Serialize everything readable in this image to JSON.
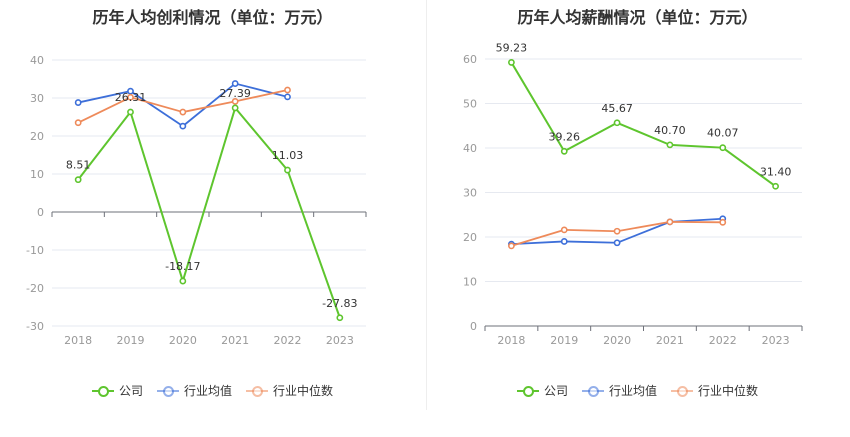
{
  "colors": {
    "company": "#5ec52e",
    "industry_avg": "#3d6fd9",
    "industry_median": "#ee8a5a"
  },
  "legend": {
    "company": "公司",
    "industry_avg": "行业均值",
    "industry_median": "行业中位数"
  },
  "chart_data": [
    {
      "type": "line",
      "title": "历年人均创利情况（单位：万元）",
      "categories": [
        "2018",
        "2019",
        "2020",
        "2021",
        "2022",
        "2023"
      ],
      "ylim": [
        -30,
        40
      ],
      "yticks": [
        -30,
        -20,
        -10,
        0,
        10,
        20,
        30,
        40
      ],
      "grid": true,
      "legend_position": "bottom",
      "series": [
        {
          "name": "公司",
          "color_key": "company",
          "values": [
            8.51,
            26.31,
            -18.17,
            27.39,
            11.03,
            -27.83
          ],
          "labels": [
            "8.51",
            "26.31",
            "-18.17",
            "27.39",
            "11.03",
            "-27.83"
          ]
        },
        {
          "name": "行业均值",
          "color_key": "industry_avg",
          "values": [
            28.8,
            31.8,
            22.6,
            33.8,
            30.3,
            null
          ]
        },
        {
          "name": "行业中位数",
          "color_key": "industry_median",
          "values": [
            23.5,
            30.2,
            26.3,
            29.1,
            32.1,
            null
          ]
        }
      ]
    },
    {
      "type": "line",
      "title": "历年人均薪酬情况（单位：万元）",
      "categories": [
        "2018",
        "2019",
        "2020",
        "2021",
        "2022",
        "2023"
      ],
      "ylim": [
        0,
        60
      ],
      "yticks": [
        0,
        10,
        20,
        30,
        40,
        50,
        60
      ],
      "grid": true,
      "legend_position": "bottom",
      "series": [
        {
          "name": "公司",
          "color_key": "company",
          "values": [
            59.23,
            39.26,
            45.67,
            40.7,
            40.07,
            31.4
          ],
          "labels": [
            "59.23",
            "39.26",
            "45.67",
            "40.70",
            "40.07",
            "31.40"
          ]
        },
        {
          "name": "行业均值",
          "color_key": "industry_avg",
          "values": [
            18.4,
            19.0,
            18.7,
            23.4,
            24.1,
            null
          ]
        },
        {
          "name": "行业中位数",
          "color_key": "industry_median",
          "values": [
            18.0,
            21.6,
            21.3,
            23.4,
            23.3,
            null
          ]
        }
      ]
    }
  ]
}
